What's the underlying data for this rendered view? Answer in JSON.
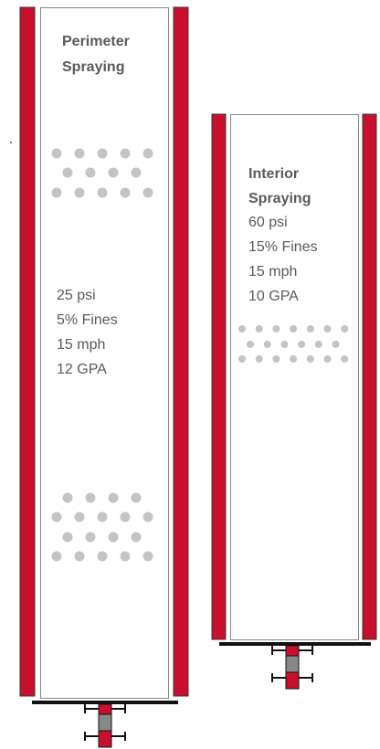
{
  "panels": [
    {
      "title_lines": [
        "Perimeter",
        "Spraying"
      ],
      "specs": [
        "25 psi",
        "5% Fines",
        "15 mph",
        "12 GPA"
      ]
    },
    {
      "title_lines": [
        "Interior",
        "Spraying"
      ],
      "specs": [
        "60 psi",
        "15% Fines",
        "15 mph",
        "10 GPA"
      ]
    }
  ]
}
